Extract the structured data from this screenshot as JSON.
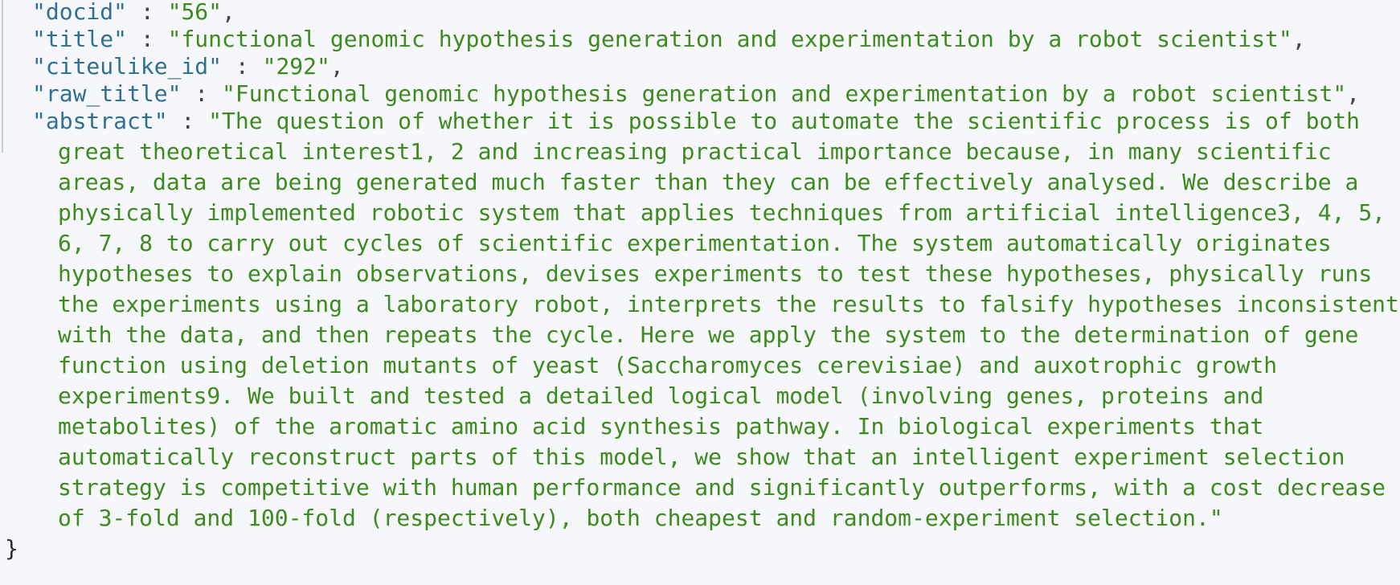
{
  "fields": [
    {
      "key": "\"docid\"",
      "value": "\"56\"",
      "trail": ","
    },
    {
      "key": "\"title\"",
      "value": "\"functional genomic hypothesis generation and experimentation by a robot scientist\"",
      "trail": ","
    },
    {
      "key": "\"citeulike_id\"",
      "value": "\"292\"",
      "trail": ","
    },
    {
      "key": "\"raw_title\"",
      "value": "\"Functional genomic hypothesis generation and experimentation by a robot scientist\"",
      "trail": ","
    }
  ],
  "abstract": {
    "key": "\"abstract\"",
    "lines": [
      "\"The question of whether it is possible to automate the scientific process is of both",
      "great theoretical interest1, 2 and increasing practical importance because, in many scientific",
      "areas, data are being generated much faster than they can be effectively analysed. We describe a",
      "physically implemented robotic system that applies techniques from artificial intelligence3, 4, 5,",
      "6, 7, 8 to carry out cycles of scientific experimentation. The system automatically originates",
      "hypotheses to explain observations, devises experiments to test these hypotheses, physically runs",
      "the experiments using a laboratory robot, interprets the results to falsify hypotheses inconsistent",
      "with the data, and then repeats the cycle. Here we apply the system to the determination of gene",
      "function using deletion mutants of yeast (Saccharomyces cerevisiae) and auxotrophic growth",
      "experiments9. We built and tested a detailed logical model (involving genes, proteins and",
      "metabolites) of the aromatic amino acid synthesis pathway. In biological experiments that",
      "automatically reconstruct parts of this model, we show that an intelligent experiment selection",
      "strategy is competitive with human performance and significantly outperforms, with a cost decrease",
      "of 3-fold and 100-fold (respectively), both cheapest and random-experiment selection.\""
    ]
  },
  "separator": " : ",
  "closing_brace": "}",
  "colors": {
    "key": "#2e6f93",
    "string": "#3d8a1e",
    "background": "#f5f7fa"
  }
}
